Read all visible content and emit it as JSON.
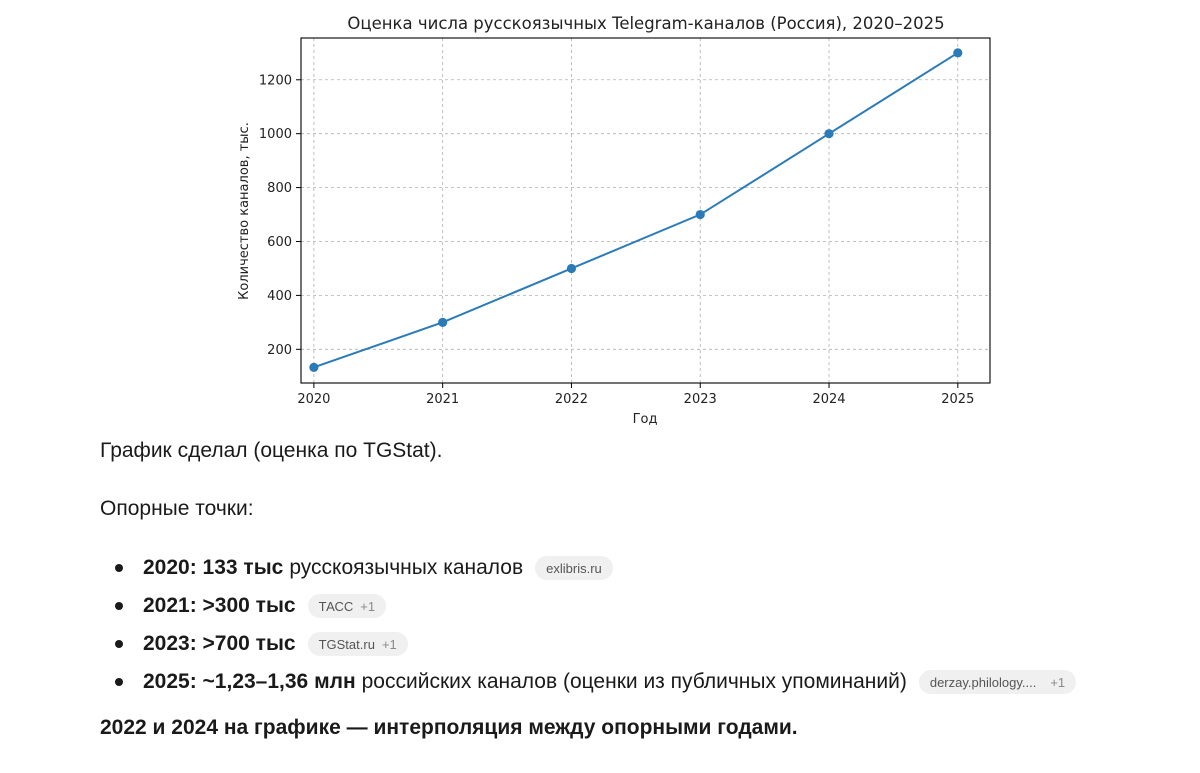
{
  "chart_data": {
    "type": "line",
    "title": "Оценка числа русскоязычных Telegram-каналов (Россия), 2020–2025",
    "xlabel": "Год",
    "ylabel": "Количество каналов, тыс.",
    "x": [
      2020,
      2021,
      2022,
      2023,
      2024,
      2025
    ],
    "values": [
      133,
      300,
      500,
      700,
      1000,
      1300
    ],
    "xticks": [
      "2020",
      "2021",
      "2022",
      "2023",
      "2024",
      "2025"
    ],
    "yticks": [
      200,
      400,
      600,
      800,
      1000,
      1200
    ],
    "ytick_labels": [
      "200",
      "400",
      "600",
      "800",
      "1000",
      "1200"
    ],
    "xlim": [
      2019.9,
      2025.25
    ],
    "ylim": [
      75,
      1355
    ],
    "grid": true,
    "color": "#2b7bb9"
  },
  "text": {
    "intro": "График сделал (оценка по TGStat).",
    "points_title": "Опорные точки:",
    "note": "2022 и 2024 на графике — интерполяция между опорными годами."
  },
  "points": [
    {
      "strong": "2020: 133 тыс",
      "rest": "русскоязычных каналов",
      "source": "exlibris.ru",
      "extra": ""
    },
    {
      "strong": "2021: >300 тыс",
      "rest": "",
      "source": "ТАСС",
      "extra": "+1"
    },
    {
      "strong": "2023: >700 тыс",
      "rest": "",
      "source": "TGStat.ru",
      "extra": "+1"
    },
    {
      "strong": "2025: ~1,23–1,36 млн",
      "rest": "российских каналов (оценки из публичных упоминаний)",
      "source": "derzay.philology....",
      "extra": "+1"
    }
  ]
}
